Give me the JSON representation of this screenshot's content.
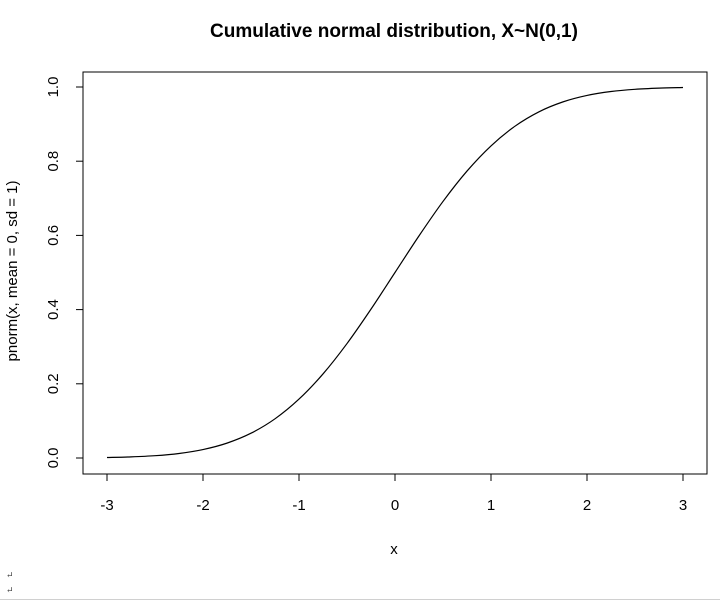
{
  "chart_data": {
    "type": "line",
    "title": "Cumulative normal distribution, X~N(0,1)",
    "xlabel": "x",
    "ylabel": "pnorm(x, mean = 0, sd = 1)",
    "xlim": [
      -3,
      3
    ],
    "ylim": [
      0,
      1
    ],
    "x_ticks": [
      "-3",
      "-2",
      "-1",
      "0",
      "1",
      "2",
      "3"
    ],
    "y_ticks": [
      "0.0",
      "0.2",
      "0.4",
      "0.6",
      "0.8",
      "1.0"
    ],
    "grid": false,
    "legend": "none",
    "line_color": "#000000",
    "series": [
      {
        "x": [
          -3.0,
          -2.75,
          -2.5,
          -2.25,
          -2.0,
          -1.75,
          -1.5,
          -1.25,
          -1.0,
          -0.75,
          -0.5,
          -0.25,
          0.0,
          0.25,
          0.5,
          0.75,
          1.0,
          1.25,
          1.5,
          1.75,
          2.0,
          2.25,
          2.5,
          2.75,
          3.0
        ],
        "y": [
          0.0013,
          0.003,
          0.0062,
          0.0122,
          0.0228,
          0.0401,
          0.0668,
          0.1056,
          0.1587,
          0.2266,
          0.3085,
          0.4013,
          0.5,
          0.5987,
          0.6915,
          0.7734,
          0.8413,
          0.8944,
          0.9332,
          0.9599,
          0.9772,
          0.9878,
          0.9938,
          0.997,
          0.9987
        ]
      }
    ]
  },
  "page_marks": [
    "↵",
    "↵"
  ]
}
